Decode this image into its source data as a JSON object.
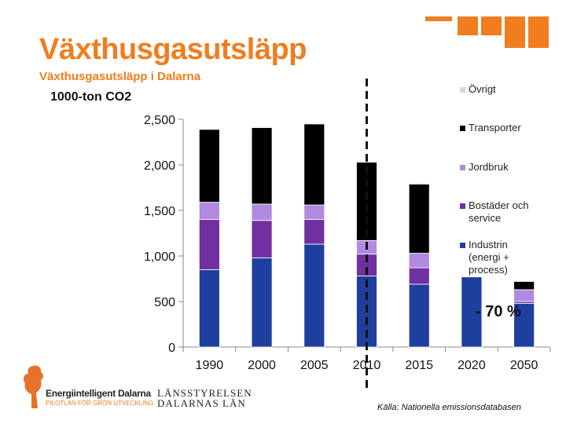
{
  "title": "Växthusgasutsläpp",
  "subtitle": "Växthusgasutsläpp i Dalarna",
  "colors": {
    "accent": "#f07d1e"
  },
  "chart_data": {
    "type": "bar",
    "stacked": true,
    "ylabel": "1000-ton CO2",
    "ylim": [
      0,
      2500
    ],
    "yticks": [
      0,
      500,
      1000,
      1500,
      2000,
      2500
    ],
    "ytick_labels": [
      "0",
      "500",
      "1,000",
      "1,500",
      "2,000",
      "2,500"
    ],
    "categories": [
      "1990",
      "2000",
      "2005",
      "2010",
      "2015",
      "2020",
      "2050"
    ],
    "series": [
      {
        "name": "Industrin (energi + process)",
        "color": "#1f3f9e",
        "values": [
          850,
          980,
          1130,
          780,
          690,
          770,
          480
        ]
      },
      {
        "name": "Bostäder och service",
        "color": "#7030a0",
        "values": [
          550,
          410,
          270,
          240,
          180,
          0,
          20
        ]
      },
      {
        "name": "Jordbruk",
        "color": "#b08ae0",
        "values": [
          190,
          180,
          160,
          150,
          160,
          0,
          130
        ]
      },
      {
        "name": "Transporter",
        "color": "#000000",
        "values": [
          800,
          840,
          890,
          860,
          760,
          0,
          90
        ]
      },
      {
        "name": "Övrigt",
        "color": "#d9d9d9",
        "values": [
          10,
          10,
          10,
          10,
          10,
          0,
          0
        ]
      }
    ],
    "legend_labels": [
      "Övrigt",
      "Transporter",
      "Jordbruk",
      "Bostäder och service",
      "Industrin (energi + process)"
    ],
    "annotations": {
      "reduction": "- 70 %",
      "divider_after": "2010"
    },
    "legend_position": "right"
  },
  "source": "Källa: Nationella emissionsdatabasen",
  "logos": {
    "energi_name": "Energiintelligent Dalarna",
    "energi_tagline": "PILOTLÄN FÖR GRÖN UTVECKLING",
    "lst_line1": "LÄNSSTYRELSEN",
    "lst_line2": "DALARNAS LÄN"
  }
}
